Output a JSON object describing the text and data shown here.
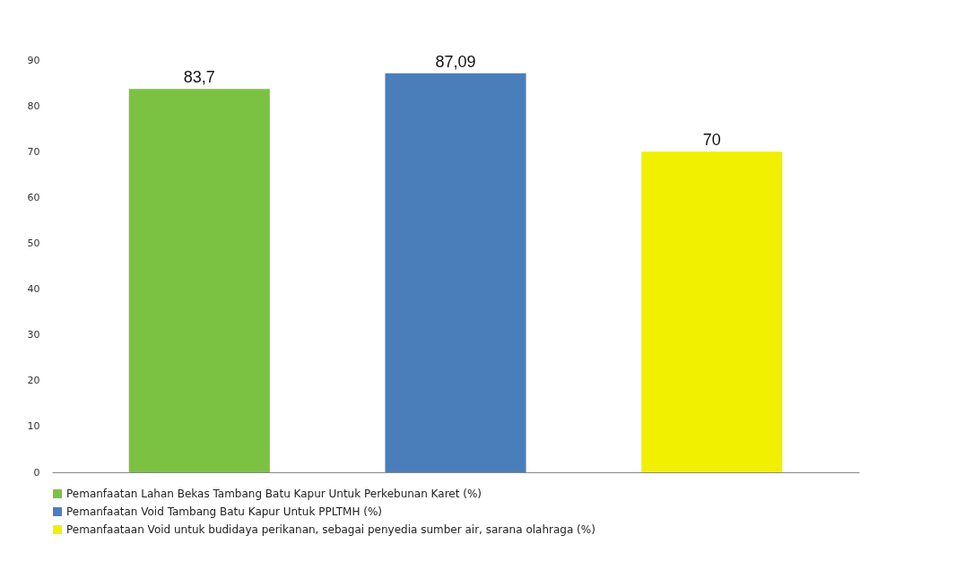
{
  "chart_data": {
    "type": "bar",
    "categories": [
      null,
      null,
      null
    ],
    "series": [
      {
        "name": "Pemanfaatan Lahan Bekas Tambang Batu Kapur Untuk Perkebunan Karet (%)",
        "color": "#7cc242",
        "values": [
          83.7,
          null,
          null
        ],
        "value_labels": [
          "83,7",
          null,
          null
        ]
      },
      {
        "name": "Pemanfaatan Void Tambang Batu Kapur Untuk PPLTMH (%)",
        "color": "#4a7ebb",
        "values": [
          null,
          87.09,
          null
        ],
        "value_labels": [
          null,
          "87,09",
          null
        ]
      },
      {
        "name": "Pemanfaataan Void untuk budidaya perikanan, sebagai penyedia sumber air, sarana olahraga (%)",
        "color": "#f0f000",
        "values": [
          null,
          null,
          70
        ],
        "value_labels": [
          null,
          null,
          "70"
        ]
      }
    ],
    "ylim": [
      0,
      90
    ],
    "yticks": [
      0,
      10,
      20,
      30,
      40,
      50,
      60,
      70,
      80,
      90
    ],
    "grid": false,
    "legend": "bottom",
    "tick_labels": "y"
  }
}
